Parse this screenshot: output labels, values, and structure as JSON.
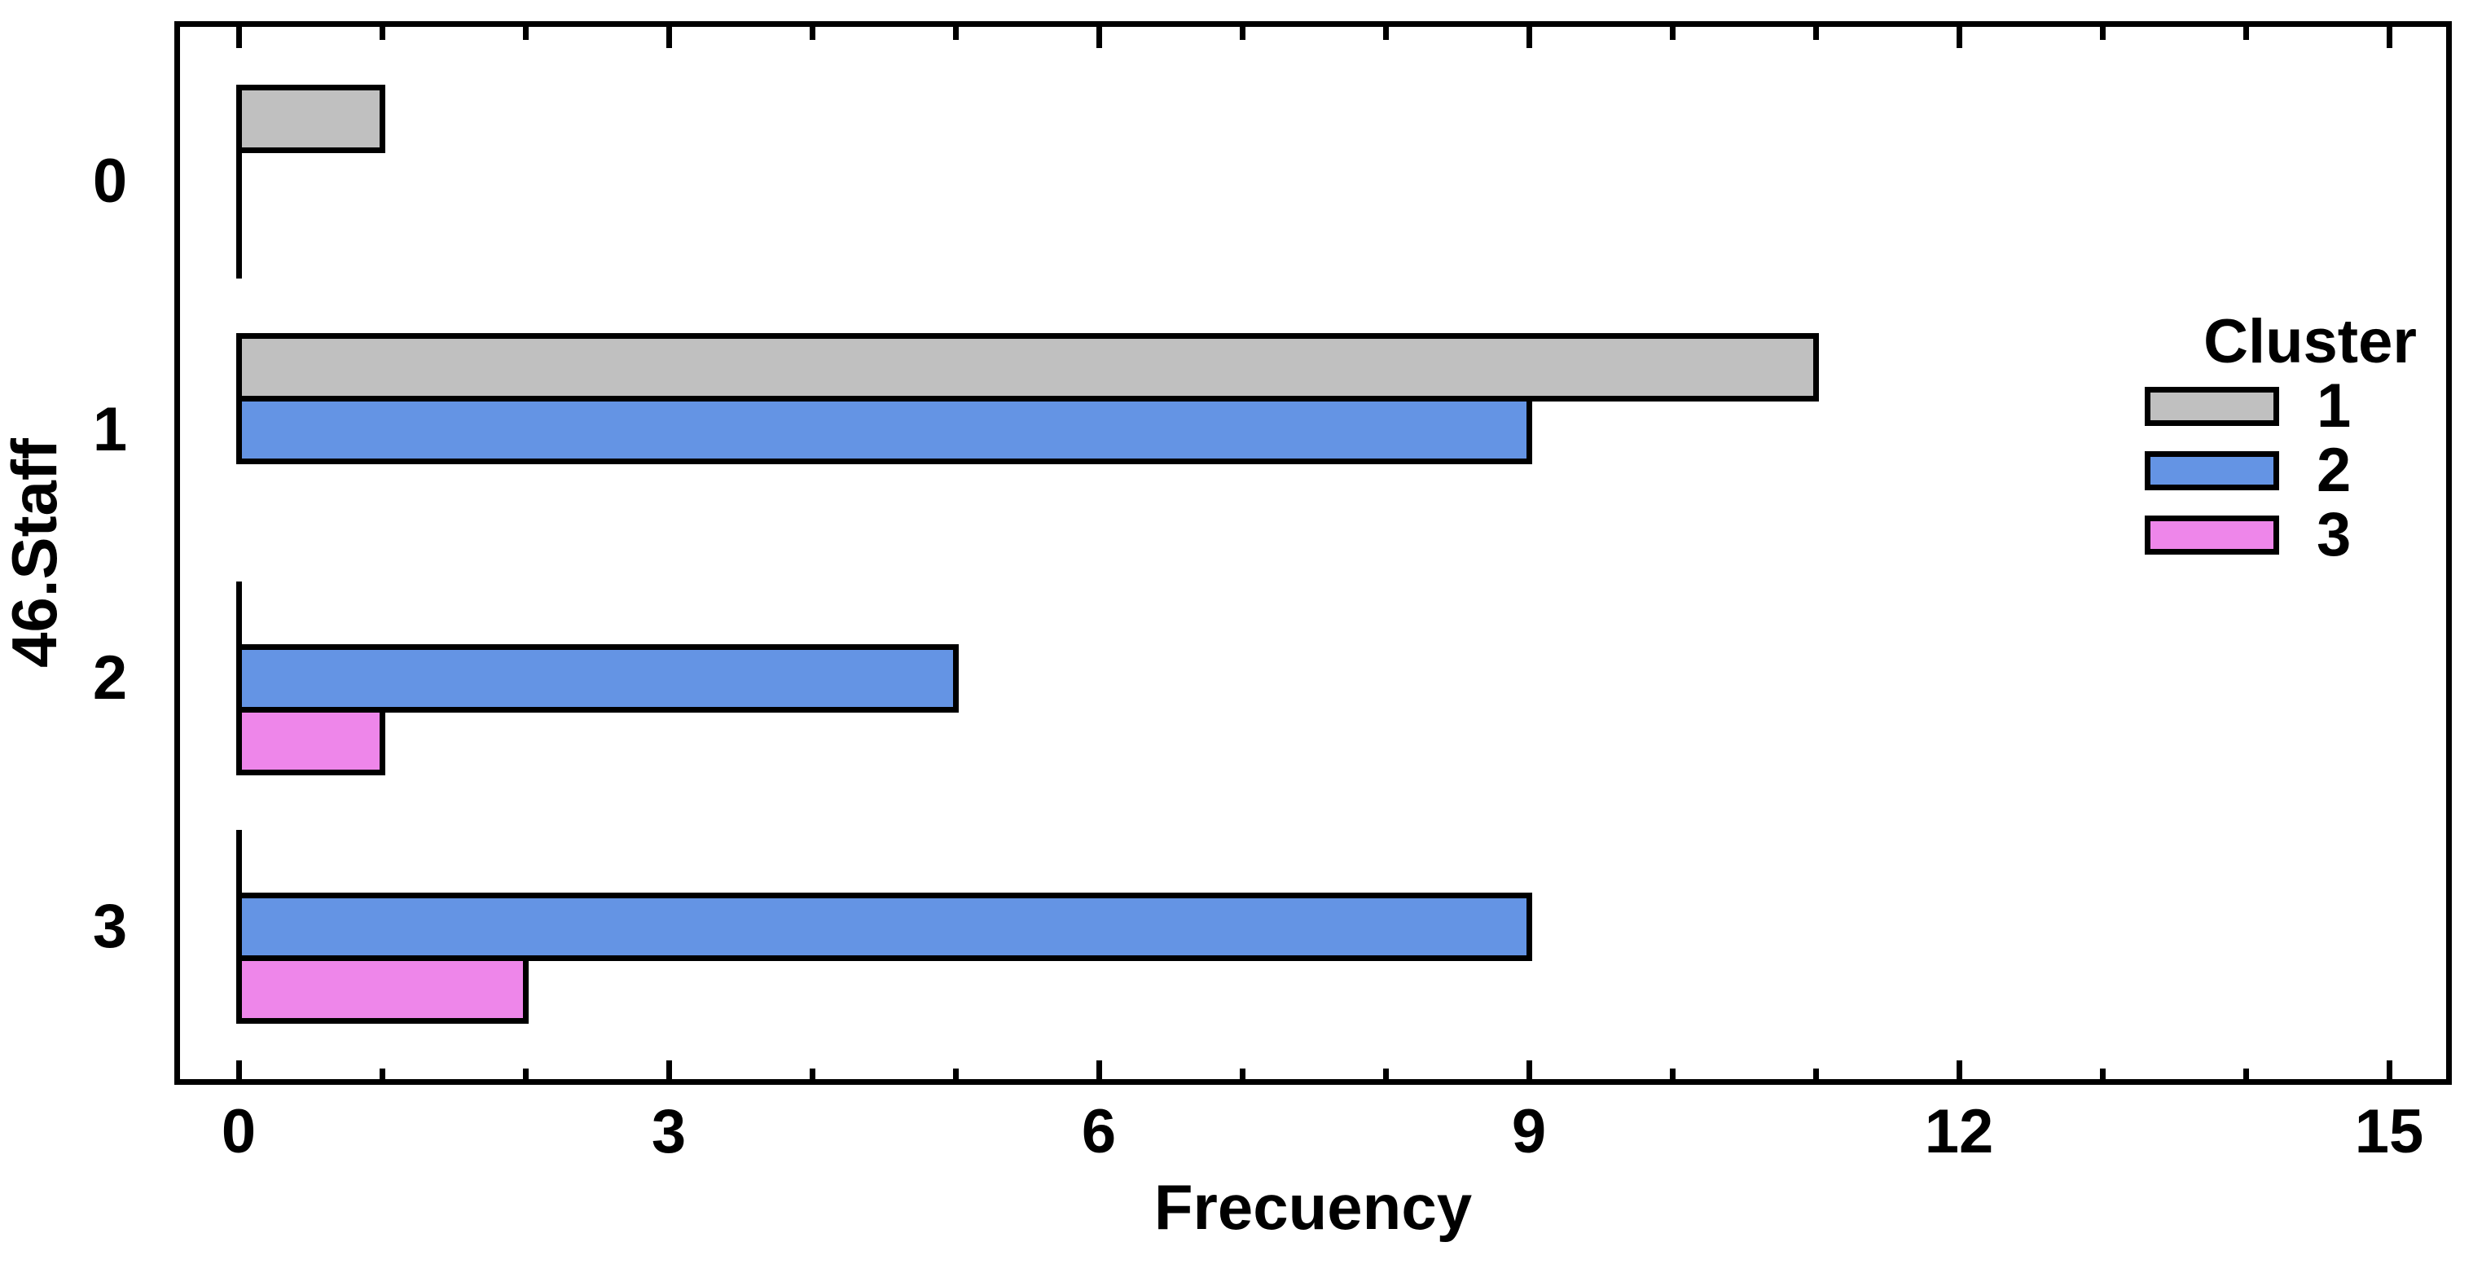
{
  "chart_data": {
    "type": "bar",
    "orientation": "horizontal",
    "xlabel": "Frecuency",
    "ylabel": "46.Staff",
    "categories": [
      "0",
      "1",
      "2",
      "3"
    ],
    "series": [
      {
        "name": "1",
        "color": "#C0C0C0",
        "values": [
          1,
          11,
          0,
          0
        ]
      },
      {
        "name": "2",
        "color": "#6494E4",
        "values": [
          0,
          9,
          5,
          9
        ]
      },
      {
        "name": "3",
        "color": "#EE86EA",
        "values": [
          0,
          null,
          1,
          2
        ]
      }
    ],
    "x_ticks_major": [
      0,
      3,
      6,
      9,
      12,
      15
    ],
    "x_minor_step": 1,
    "xlim": [
      -0.43,
      15.43
    ],
    "grid": false,
    "legend": {
      "title": "Cluster",
      "position": "upper-right"
    },
    "colors": {
      "background": "#FFFFFF",
      "frame": "#000000",
      "bar_outline": "#000000"
    }
  }
}
